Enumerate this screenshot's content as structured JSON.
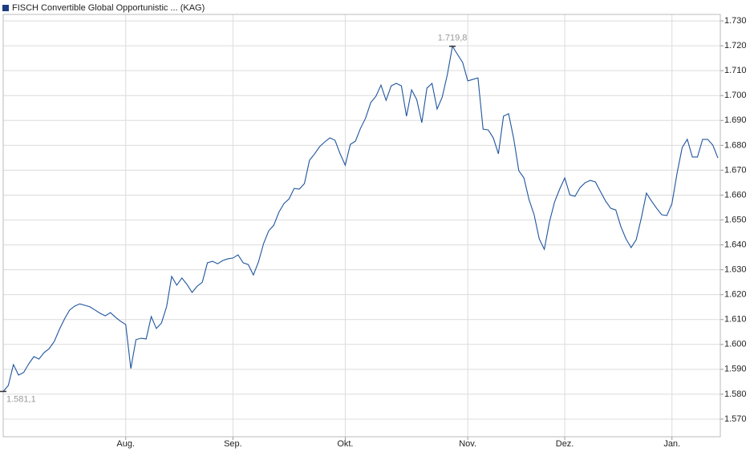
{
  "chart_data": {
    "type": "line",
    "categories": [
      null,
      null,
      null,
      null,
      null,
      null,
      null,
      null,
      null,
      null,
      null,
      null,
      null,
      null,
      null,
      null,
      null,
      null,
      null,
      null,
      null,
      null,
      null,
      null,
      "Aug.",
      null,
      null,
      null,
      null,
      null,
      null,
      null,
      null,
      null,
      null,
      null,
      null,
      null,
      null,
      null,
      null,
      null,
      null,
      null,
      null,
      "Sep.",
      null,
      null,
      null,
      null,
      null,
      null,
      null,
      null,
      null,
      null,
      null,
      null,
      null,
      null,
      null,
      null,
      null,
      null,
      null,
      null,
      null,
      "Okt.",
      null,
      null,
      null,
      null,
      null,
      null,
      null,
      null,
      null,
      null,
      null,
      null,
      null,
      null,
      null,
      null,
      null,
      null,
      null,
      null,
      null,
      null,
      null,
      "Nov.",
      null,
      null,
      null,
      null,
      null,
      null,
      null,
      null,
      null,
      null,
      null,
      null,
      null,
      null,
      null,
      null,
      null,
      null,
      "Dez.",
      null,
      null,
      null,
      null,
      null,
      null,
      null,
      null,
      null,
      null,
      null,
      null,
      null,
      null,
      null,
      null,
      null,
      null,
      null,
      null,
      "Jan.",
      null,
      null,
      null,
      null,
      null,
      null,
      null,
      null,
      null
    ],
    "series": [
      {
        "name": "FISCH Convertible Global Opportunistic ... (KAG)",
        "color": "#1f559e",
        "legend_color": "#1a3d82",
        "values": [
          1581.1,
          1583.5,
          1591.9,
          1587.7,
          1588.7,
          1592.2,
          1595.1,
          1594.1,
          1596.7,
          1598.3,
          1601.2,
          1606.0,
          1610.2,
          1613.8,
          1615.4,
          1616.3,
          1615.7,
          1615.1,
          1613.8,
          1612.5,
          1611.5,
          1612.8,
          1610.9,
          1609.3,
          1608.0,
          1590.3,
          1601.9,
          1602.5,
          1602.2,
          1611.2,
          1606.4,
          1608.6,
          1615.1,
          1627.3,
          1623.8,
          1626.7,
          1624.1,
          1620.9,
          1623.4,
          1625.0,
          1632.8,
          1633.4,
          1632.4,
          1633.7,
          1634.4,
          1634.7,
          1636.0,
          1632.8,
          1632.1,
          1627.9,
          1633.1,
          1640.5,
          1645.6,
          1647.9,
          1653.1,
          1656.6,
          1658.5,
          1662.7,
          1662.4,
          1664.6,
          1674.0,
          1676.6,
          1679.5,
          1681.4,
          1683.0,
          1682.0,
          1676.6,
          1672.0,
          1680.4,
          1681.7,
          1686.9,
          1691.0,
          1697.2,
          1699.7,
          1704.2,
          1698.1,
          1703.9,
          1704.9,
          1703.9,
          1691.7,
          1702.3,
          1698.4,
          1689.1,
          1703.0,
          1704.9,
          1694.6,
          1699.4,
          1708.4,
          1719.8,
          1716.5,
          1713.3,
          1705.9,
          1706.5,
          1707.1,
          1686.5,
          1686.2,
          1683.0,
          1676.6,
          1691.7,
          1692.7,
          1682.7,
          1669.8,
          1666.9,
          1658.2,
          1652.1,
          1642.4,
          1638.2,
          1649.2,
          1657.2,
          1662.4,
          1666.9,
          1660.1,
          1659.5,
          1663.0,
          1665.0,
          1665.9,
          1665.3,
          1661.4,
          1657.6,
          1654.7,
          1654.0,
          1647.3,
          1642.4,
          1638.9,
          1642.1,
          1650.8,
          1660.8,
          1657.6,
          1654.7,
          1652.1,
          1651.8,
          1656.6,
          1668.8,
          1679.1,
          1682.4,
          1675.3,
          1675.3,
          1682.4,
          1682.4,
          1680.1,
          1674.9
        ],
        "value_labels": [
          "1.581,1",
          null,
          null,
          null,
          null,
          null,
          null,
          null,
          null,
          null,
          null,
          null,
          null,
          null,
          null,
          null,
          null,
          null,
          null,
          null,
          null,
          null,
          null,
          null,
          null,
          null,
          null,
          null,
          null,
          null,
          null,
          null,
          null,
          null,
          null,
          null,
          null,
          null,
          null,
          null,
          null,
          null,
          null,
          null,
          null,
          null,
          null,
          null,
          null,
          null,
          null,
          null,
          null,
          null,
          null,
          null,
          null,
          null,
          null,
          null,
          null,
          null,
          null,
          null,
          null,
          null,
          null,
          null,
          null,
          null,
          null,
          null,
          null,
          null,
          null,
          null,
          null,
          null,
          null,
          null,
          null,
          null,
          null,
          null,
          null,
          null,
          null,
          null,
          "1.719,8",
          null,
          null,
          null,
          null,
          null,
          null,
          null,
          null,
          null,
          null,
          null,
          null,
          null,
          null,
          null,
          null,
          null,
          null,
          null,
          null,
          null,
          null,
          null,
          null,
          null,
          null,
          null,
          null,
          null,
          null,
          null,
          null,
          null,
          null,
          null,
          null,
          null,
          null,
          null,
          null,
          null,
          null,
          null,
          null,
          null,
          null,
          null,
          null,
          null,
          null,
          null,
          null
        ]
      }
    ],
    "ylim": [
      1562.9,
      1732.6
    ],
    "yticks": [
      {
        "value": 1570,
        "label": "1.570"
      },
      {
        "value": 1580,
        "label": "1.580"
      },
      {
        "value": 1590,
        "label": "1.590"
      },
      {
        "value": 1600,
        "label": "1.600"
      },
      {
        "value": 1610,
        "label": "1.610"
      },
      {
        "value": 1620,
        "label": "1.620"
      },
      {
        "value": 1630,
        "label": "1.630"
      },
      {
        "value": 1640,
        "label": "1.640"
      },
      {
        "value": 1650,
        "label": "1.650"
      },
      {
        "value": 1660,
        "label": "1.660"
      },
      {
        "value": 1670,
        "label": "1.670"
      },
      {
        "value": 1680,
        "label": "1.680"
      },
      {
        "value": 1690,
        "label": "1.690"
      },
      {
        "value": 1700,
        "label": "1.700"
      },
      {
        "value": 1710,
        "label": "1.710"
      },
      {
        "value": 1720,
        "label": "1.720"
      },
      {
        "value": 1730,
        "label": "1.730"
      }
    ],
    "grid": true
  }
}
